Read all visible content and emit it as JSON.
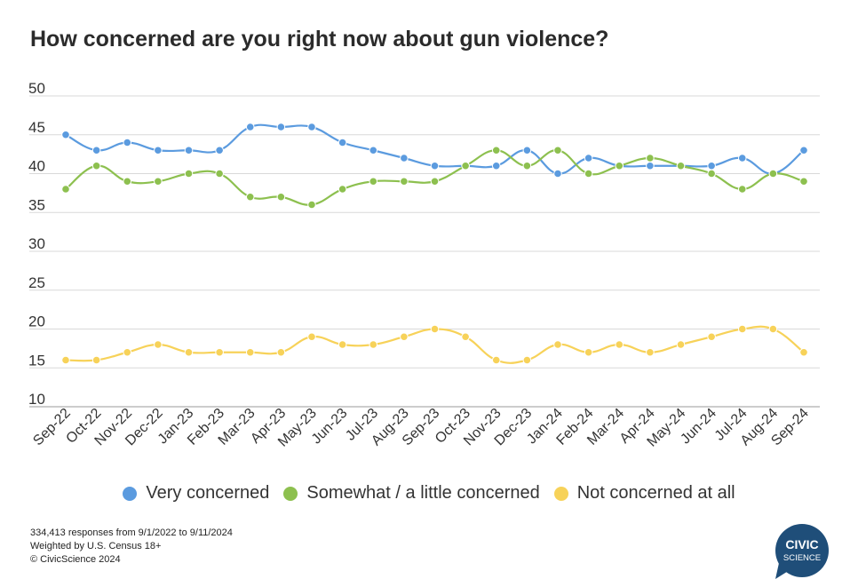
{
  "chart_data": {
    "type": "line",
    "title": "How concerned are you right now about gun violence?",
    "xlabel": "",
    "ylabel": "",
    "ylim": [
      10,
      50
    ],
    "yticks": [
      "10",
      "15",
      "20",
      "25",
      "30",
      "35",
      "40",
      "45",
      "50"
    ],
    "categories": [
      "Sep-22",
      "Oct-22",
      "Nov-22",
      "Dec-22",
      "Jan-23",
      "Feb-23",
      "Mar-23",
      "Apr-23",
      "May-23",
      "Jun-23",
      "Jul-23",
      "Aug-23",
      "Sep-23",
      "Oct-23",
      "Nov-23",
      "Dec-23",
      "Jan-24",
      "Feb-24",
      "Mar-24",
      "Apr-24",
      "May-24",
      "Jun-24",
      "Jul-24",
      "Aug-24",
      "Sep-24"
    ],
    "grid": true,
    "legend_position": "bottom",
    "series": [
      {
        "name": "Very concerned",
        "color": "#5b9bdf",
        "values": [
          45,
          43,
          44,
          43,
          43,
          43,
          46,
          46,
          46,
          44,
          43,
          42,
          41,
          41,
          41,
          43,
          40,
          42,
          41,
          41,
          41,
          41,
          42,
          40,
          43
        ]
      },
      {
        "name": "Somewhat / a little concerned",
        "color": "#8dc04f",
        "values": [
          38,
          41,
          39,
          39,
          40,
          40,
          37,
          37,
          36,
          38,
          39,
          39,
          39,
          41,
          43,
          41,
          43,
          40,
          41,
          42,
          41,
          40,
          38,
          40,
          39
        ]
      },
      {
        "name": "Not concerned at all",
        "color": "#f7d259",
        "values": [
          16,
          16,
          17,
          18,
          17,
          17,
          17,
          17,
          19,
          18,
          18,
          19,
          20,
          19,
          16,
          16,
          18,
          17,
          18,
          17,
          18,
          19,
          20,
          20,
          17
        ]
      }
    ]
  },
  "notes": {
    "line1": "334,413 responses from 9/1/2022 to 9/11/2024",
    "line2": "Weighted by U.S. Census 18+",
    "line3": "© CivicScience 2024"
  },
  "logo": {
    "top": "CIVIC",
    "bottom": "SCIENCE",
    "color": "#1f4e79"
  }
}
